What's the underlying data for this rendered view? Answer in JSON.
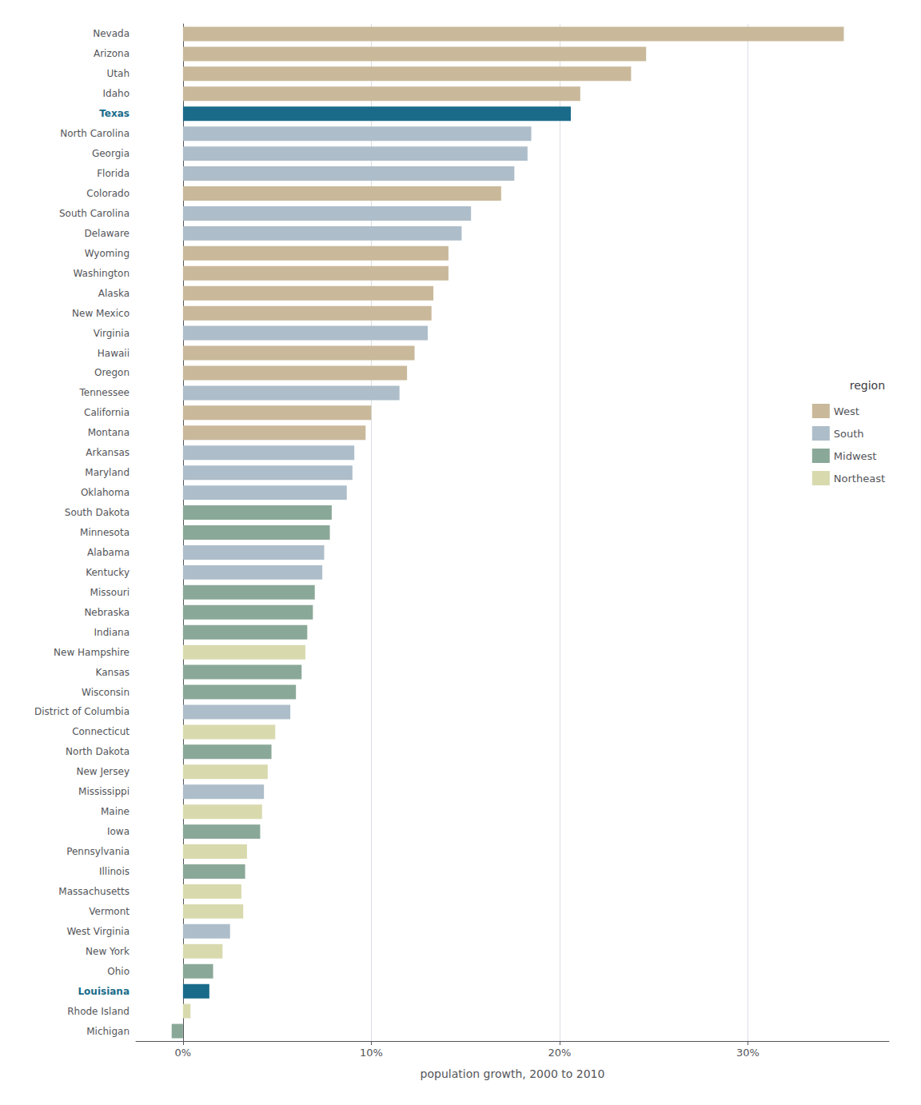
{
  "chart_data": {
    "type": "bar",
    "orientation": "horizontal",
    "xlabel": "population growth, 2000 to 2010",
    "legend_title": "region",
    "legend": "right",
    "grid": true,
    "xlim": [
      -2.5,
      37.5
    ],
    "xticks": [
      {
        "value": 0,
        "label": "0%"
      },
      {
        "value": 10,
        "label": "10%"
      },
      {
        "value": 20,
        "label": "20%"
      },
      {
        "value": 30,
        "label": "30%"
      }
    ],
    "categories": [
      "Nevada",
      "Arizona",
      "Utah",
      "Idaho",
      "Texas",
      "North Carolina",
      "Georgia",
      "Florida",
      "Colorado",
      "South Carolina",
      "Delaware",
      "Wyoming",
      "Washington",
      "Alaska",
      "New Mexico",
      "Virginia",
      "Hawaii",
      "Oregon",
      "Tennessee",
      "California",
      "Montana",
      "Arkansas",
      "Maryland",
      "Oklahoma",
      "South Dakota",
      "Minnesota",
      "Alabama",
      "Kentucky",
      "Missouri",
      "Nebraska",
      "Indiana",
      "New Hampshire",
      "Kansas",
      "Wisconsin",
      "District of Columbia",
      "Connecticut",
      "North Dakota",
      "New Jersey",
      "Mississippi",
      "Maine",
      "Iowa",
      "Pennsylvania",
      "Illinois",
      "Massachusetts",
      "Vermont",
      "West Virginia",
      "New York",
      "Ohio",
      "Louisiana",
      "Rhode Island",
      "Michigan"
    ],
    "series": [
      {
        "name": "West",
        "color": "#c9b99a",
        "values": [
          35.1,
          24.6,
          23.8,
          21.1,
          null,
          null,
          null,
          null,
          16.9,
          null,
          null,
          14.1,
          14.1,
          13.3,
          13.2,
          null,
          12.3,
          11.9,
          null,
          10.0,
          9.7,
          null,
          null,
          null,
          null,
          null,
          null,
          null,
          null,
          null,
          null,
          null,
          null,
          null,
          null,
          null,
          null,
          null,
          null,
          null,
          null,
          null,
          null,
          null,
          null,
          null,
          null,
          null,
          null,
          null,
          null
        ]
      },
      {
        "name": "South",
        "color": "#adbdc9",
        "values": [
          null,
          null,
          null,
          null,
          20.6,
          18.5,
          18.3,
          17.6,
          null,
          15.3,
          14.8,
          null,
          null,
          null,
          null,
          13.0,
          null,
          null,
          11.5,
          null,
          null,
          9.1,
          9.0,
          8.7,
          null,
          null,
          7.5,
          7.4,
          null,
          null,
          null,
          null,
          null,
          null,
          5.7,
          null,
          null,
          null,
          4.3,
          null,
          null,
          null,
          null,
          null,
          null,
          2.5,
          null,
          null,
          1.4,
          null,
          null
        ],
        "colors": [
          null,
          null,
          null,
          null,
          "#1a6b8a",
          "#adbdc9",
          "#adbdc9",
          "#adbdc9",
          null,
          "#adbdc9",
          "#adbdc9",
          null,
          null,
          null,
          null,
          "#adbdc9",
          null,
          null,
          "#adbdc9",
          null,
          null,
          "#adbdc9",
          "#adbdc9",
          "#adbdc9",
          null,
          null,
          "#adbdc9",
          "#adbdc9",
          null,
          null,
          null,
          null,
          null,
          null,
          "#adbdc9",
          null,
          null,
          null,
          "#adbdc9",
          null,
          null,
          null,
          null,
          null,
          null,
          "#adbdc9",
          null,
          null,
          "#1a6b8a",
          null,
          null
        ]
      },
      {
        "name": "Midwest",
        "color": "#8aa898",
        "values": [
          null,
          null,
          null,
          null,
          null,
          null,
          null,
          null,
          null,
          null,
          null,
          null,
          null,
          null,
          null,
          null,
          null,
          null,
          null,
          null,
          null,
          null,
          null,
          null,
          7.9,
          7.8,
          null,
          null,
          7.0,
          6.9,
          6.6,
          null,
          6.3,
          6.0,
          null,
          null,
          4.7,
          null,
          null,
          null,
          4.1,
          null,
          3.3,
          null,
          null,
          null,
          null,
          1.6,
          null,
          null,
          -0.6
        ]
      },
      {
        "name": "Northeast",
        "color": "#d8daae",
        "values": [
          null,
          null,
          null,
          null,
          null,
          null,
          null,
          null,
          null,
          null,
          null,
          null,
          null,
          null,
          null,
          null,
          null,
          null,
          null,
          null,
          null,
          null,
          null,
          null,
          null,
          null,
          null,
          null,
          null,
          null,
          null,
          6.5,
          null,
          null,
          null,
          4.9,
          null,
          4.5,
          null,
          4.2,
          null,
          3.4,
          null,
          3.1,
          3.2,
          null,
          2.1,
          null,
          null,
          0.4,
          null
        ]
      }
    ]
  }
}
